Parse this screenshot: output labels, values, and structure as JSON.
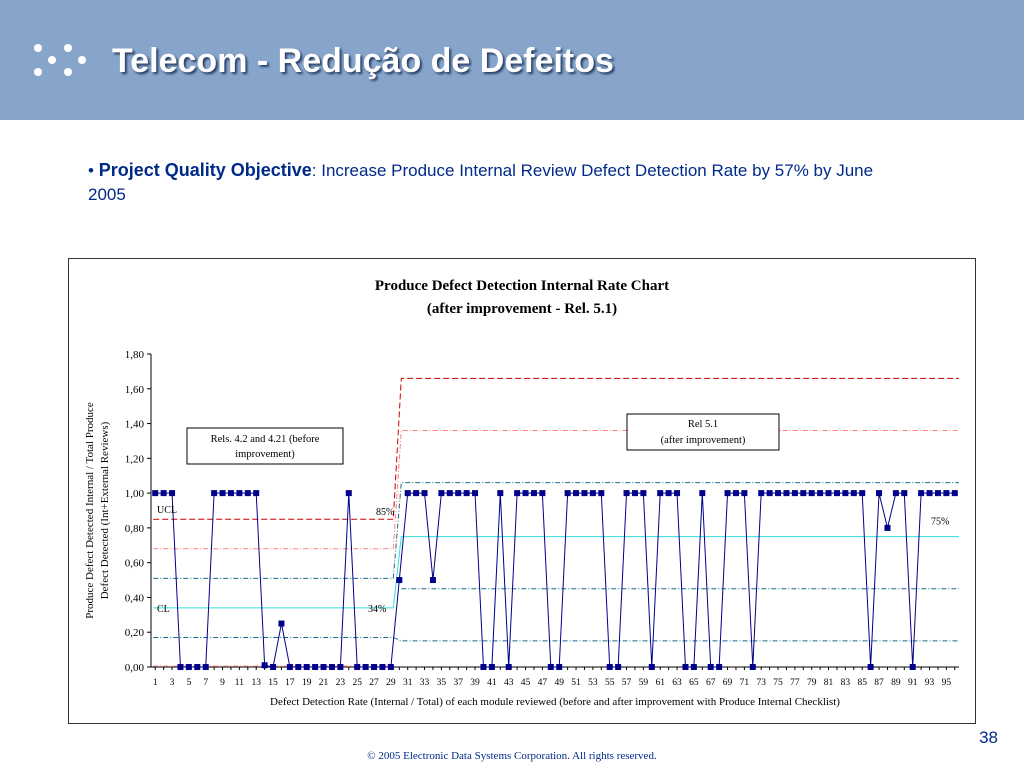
{
  "slide": {
    "title": "Telecom  - Redução de Defeitos",
    "bullet_marker": "•",
    "objective_label": "Project Quality Objective",
    "objective_sep": ":",
    "objective_text": " Increase Produce Internal Review Defect Detection Rate by 57% by June 2005",
    "page_number": "38",
    "copyright": "© 2005 Electronic Data Systems Corporation. All rights reserved.",
    "header_color": "#87A5CB"
  },
  "chart_data": {
    "type": "line",
    "title": "Produce Defect Detection Internal Rate Chart",
    "subtitle": "(after improvement - Rel. 5.1)",
    "xlabel": "Defect Detection Rate (Internal / Total) of each module reviewed (before and after improvement with Produce Internal Checklist)",
    "ylabel_line1": "Produce Defect Detected Internal / Total Produce",
    "ylabel_line2": "Defect Detected (Int+External Reviews)",
    "ylim": [
      0,
      1.8
    ],
    "yticks": [
      "0,00",
      "0,20",
      "0,40",
      "0,60",
      "0,80",
      "1,00",
      "1,20",
      "1,40",
      "1,60",
      "1,80"
    ],
    "xticks": [
      1,
      3,
      5,
      7,
      9,
      11,
      13,
      15,
      17,
      19,
      21,
      23,
      25,
      27,
      29,
      31,
      33,
      35,
      37,
      39,
      41,
      43,
      45,
      47,
      49,
      51,
      53,
      55,
      57,
      59,
      61,
      63,
      65,
      67,
      69,
      71,
      73,
      75,
      77,
      79,
      81,
      83,
      85,
      87,
      89,
      91,
      93,
      95
    ],
    "series_color": "#00008B",
    "values": [
      1,
      1,
      1,
      0,
      0,
      0,
      0,
      1,
      1,
      1,
      1,
      1,
      1,
      0.01,
      0,
      0.25,
      0,
      0,
      0,
      0,
      0,
      0,
      0,
      1,
      0,
      0,
      0,
      0,
      0,
      0.5,
      1,
      1,
      1,
      0.5,
      1,
      1,
      1,
      1,
      1,
      0,
      0,
      1,
      0,
      1,
      1,
      1,
      1,
      0,
      0,
      1,
      1,
      1,
      1,
      1,
      0,
      0,
      1,
      1,
      1,
      0,
      1,
      1,
      1,
      0,
      0,
      1,
      0,
      0,
      1,
      1,
      1,
      0,
      1,
      1,
      1,
      1,
      1,
      1,
      1,
      1,
      1,
      1,
      1,
      1,
      1,
      0,
      1,
      0.8,
      1,
      1,
      0,
      1,
      1,
      1,
      1,
      1
    ],
    "phase_change_at": 30,
    "control_limits": {
      "before": {
        "ucl": 0.85,
        "cl": 0.34,
        "upper_sigma": 0.68,
        "lower_sigma": 0.17,
        "upper_band": 0.51
      },
      "after": {
        "ucl": 1.66,
        "cl": 0.75,
        "upper_sigma": 1.36,
        "lower_sigma": 0.15,
        "upper_band": 1.06,
        "lower_band": 0.45
      }
    },
    "annotations": {
      "ucl_label": "UCL",
      "cl_label": "CL",
      "before_ucl_pct": "85%",
      "before_cl_pct": "34%",
      "after_cl_pct": "75%",
      "before_box": [
        "Rels. 4.2 and 4.21 (before",
        "improvement)"
      ],
      "after_box": [
        "Rel 5.1",
        "(after improvement)"
      ]
    }
  }
}
